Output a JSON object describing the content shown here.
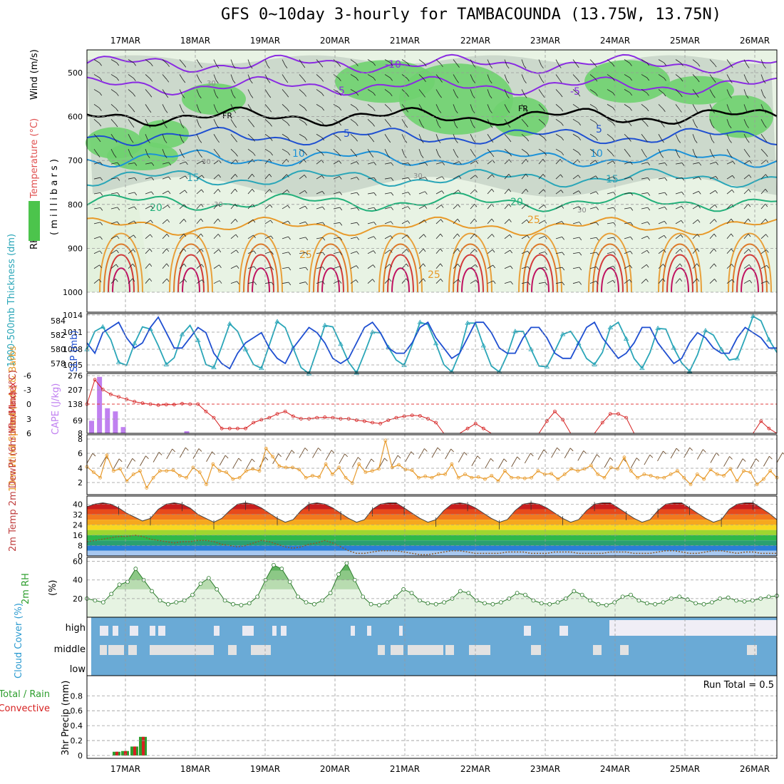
{
  "title": "GFS 0~10day 3-hourly for TAMBACOUNDA (13.75W, 13.75N)",
  "colors": {
    "purple": "#8a2be2",
    "blue": "#1f4fd1",
    "cyan": "#2aa6b8",
    "orange": "#e89a2a",
    "red": "#d62020",
    "green": "#2e9e2e",
    "cloud": "#6aaad6",
    "cape": "#c080f0"
  },
  "chart_data": [
    {
      "type": "heatmap",
      "panel": "upper-air",
      "ylabels": {
        "rh": "RH (%)",
        "temperature": "Temperature (°C)",
        "wind": "Wind (m/s)",
        "axis": "( m i l l i b a r s )"
      },
      "legend_box": "RH (%)",
      "y_ticks": [
        "500",
        "600",
        "700",
        "800",
        "900",
        "1000"
      ],
      "x_ticks": [
        "17MAR",
        "18MAR",
        "19MAR",
        "20MAR",
        "21MAR",
        "22MAR",
        "23MAR",
        "24MAR",
        "25MAR",
        "26MAR"
      ],
      "isotherm_labels": [
        "-10",
        "-5",
        "FR",
        "5",
        "10",
        "15",
        "20",
        "25",
        "-5",
        "FR",
        "5",
        "10",
        "15",
        "20",
        "25",
        "25",
        "30",
        "30",
        "30",
        "30",
        "30"
      ],
      "isotherms": [
        {
          "label": "-10",
          "level": 480
        },
        {
          "label": "-5",
          "level": 530
        },
        {
          "label": "FR",
          "level": 600
        },
        {
          "label": "5",
          "level": 645
        },
        {
          "label": "10",
          "level": 695
        },
        {
          "label": "15",
          "level": 740
        },
        {
          "label": "20",
          "level": 795
        },
        {
          "label": "25",
          "level": 850
        }
      ]
    },
    {
      "type": "line",
      "panel": "thickness-slp",
      "ylabel_left": "1000-500mb Thickness (dm)",
      "ylabel_right": "SLP (mb)",
      "y_left_ticks": [
        "584",
        "582",
        "580",
        "578"
      ],
      "y_right_ticks": [
        "1014",
        "1011",
        "1008",
        "1005"
      ],
      "series": [
        {
          "name": "1000-500mb Thickness (dm)",
          "values": [
            580.0,
            582.4,
            583.0,
            581.3,
            578.3,
            577.9,
            580.8,
            583.0,
            582.7,
            580.5,
            578.0,
            578.9,
            582.0,
            583.2,
            581.2,
            578.0,
            577.6,
            580.4,
            583.4,
            582.4,
            580.0,
            578.0,
            577.5,
            580.6,
            583.7,
            582.9,
            580.2,
            577.6,
            576.8,
            579.9,
            583.2,
            583.0,
            580.7,
            578.3,
            576.9,
            579.5,
            582.3,
            582.2,
            580.3,
            578.6,
            577.9,
            580.6,
            583.6,
            583.3,
            580.8,
            578.0,
            577.0,
            579.5,
            583.5,
            583.5,
            580.5,
            577.8,
            577.0,
            579.3,
            582.4,
            582.4,
            580.0,
            577.8,
            577.7,
            579.8,
            582.0,
            582.4,
            580.8,
            578.8,
            578.0,
            579.6,
            582.9,
            583.6,
            581.4,
            578.8,
            577.5,
            579.6,
            582.8,
            582.7,
            580.2,
            578.2,
            577.1,
            579.3,
            582.5,
            581.9,
            580.0,
            578.6,
            578.8,
            581.5,
            584.4,
            583.8,
            581.3,
            579.6
          ]
        },
        {
          "name": "SLP (mb)",
          "values": [
            1009,
            1007,
            1011,
            1012,
            1013,
            1010,
            1008,
            1009,
            1012,
            1014,
            1011,
            1008,
            1008,
            1010,
            1012,
            1011,
            1007,
            1005,
            1004,
            1007,
            1009,
            1010,
            1011,
            1008,
            1006,
            1005,
            1008,
            1010,
            1012,
            1011,
            1009,
            1006,
            1005,
            1006,
            1009,
            1012,
            1013,
            1011,
            1008,
            1007,
            1007,
            1009,
            1012,
            1013,
            1010,
            1008,
            1006,
            1007,
            1010,
            1013,
            1013,
            1011,
            1008,
            1007,
            1007,
            1010,
            1012,
            1012,
            1010,
            1007,
            1006,
            1006,
            1009,
            1012,
            1013,
            1010,
            1008,
            1006,
            1007,
            1009,
            1012,
            1012,
            1009,
            1007,
            1005,
            1006,
            1009,
            1011,
            1010,
            1008,
            1007,
            1007,
            1010,
            1012,
            1011,
            1010,
            1008,
            1008
          ]
        }
      ]
    },
    {
      "type": "bar",
      "panel": "lifted-index-cape",
      "ylabel_left": "Lifted Index",
      "ylabel_right": "CAPE (J/kg)",
      "y_left_ticks": [
        "-6",
        "-3",
        "0",
        "3",
        "6"
      ],
      "y_right_ticks": [
        "276",
        "207",
        "138",
        "69",
        "8"
      ],
      "series": [
        {
          "name": "Lifted Index",
          "values": [
            0,
            -5,
            -3,
            -2,
            -1.5,
            -1,
            -0.5,
            -0.2,
            0,
            0.2,
            0.1,
            0.1,
            -0.1,
            0,
            0,
            1.5,
            2.8,
            5,
            5,
            5,
            5,
            3.8,
            3.2,
            2.8,
            2,
            1.5,
            2.5,
            3,
            3,
            2.8,
            2.7,
            2.8,
            3,
            3,
            3.3,
            3.5,
            3.8,
            4,
            3.3,
            2.8,
            2.5,
            2.3,
            2.4,
            3,
            3.8,
            6,
            6,
            6,
            5,
            4,
            5,
            6,
            6,
            6,
            6,
            6,
            6,
            6,
            3.5,
            1.5,
            3.2,
            6,
            6,
            6,
            6,
            3.8,
            2,
            2,
            2.8,
            6,
            6,
            6,
            6,
            6,
            6,
            6,
            6,
            6,
            6,
            6,
            6,
            6,
            6,
            6,
            6,
            3.5,
            5,
            6
          ]
        },
        {
          "name": "CAPE (J/kg)",
          "values": [
            60,
            270,
            120,
            105,
            30,
            0,
            0,
            0,
            0,
            0,
            0,
            0,
            10,
            0
          ]
        }
      ]
    },
    {
      "type": "line",
      "panel": "wind-10m",
      "ylabel": "10m Wind Speed (m/s) & Barbs",
      "y_ticks": [
        "8",
        "6",
        "4",
        "2"
      ],
      "series": [
        {
          "name": "10m Wind Speed",
          "values": [
            4.1,
            3.3,
            2.5,
            5.8,
            3.5,
            3.8,
            2.0,
            3.0,
            3.5,
            1.0,
            2.5,
            3.5,
            3.5,
            3.6,
            2.8,
            2.5,
            4.0,
            3.3,
            1.5,
            4.5,
            3.5,
            3.3,
            2.3,
            2.5,
            3.5,
            3.8,
            3.5,
            6.8,
            5.6,
            4.2,
            4.0,
            4.0,
            3.7,
            2.5,
            2.8,
            2.6,
            4.5,
            3.0,
            4.0,
            2.5,
            1.7,
            4.5,
            3.3,
            3.5,
            3.8,
            8.0,
            4.0,
            4.4,
            3.7,
            3.6,
            2.5,
            2.7,
            2.5,
            3.0,
            3.0,
            4.5,
            2.5,
            3.0,
            2.5,
            2.6,
            2.3,
            2.8,
            2.0,
            3.5,
            2.5,
            2.5,
            2.4,
            2.5,
            3.5,
            3.0,
            3.1,
            2.3,
            3.0,
            3.8,
            3.5,
            3.8,
            4.3,
            3.0,
            2.5,
            4.0,
            3.8,
            5.5,
            3.5,
            2.5,
            3.0,
            2.8,
            2.5,
            2.5,
            3.0,
            3.5,
            2.5,
            1.5,
            3.0,
            2.3,
            3.7,
            3.0,
            2.8,
            3.8,
            2.0,
            3.5,
            3.3,
            1.5,
            2.3,
            3.5,
            2.5
          ]
        }
      ]
    },
    {
      "type": "area",
      "panel": "temperature-dewpoint",
      "ylabel": "2m Temp 2m DewPt (6hr Min/Max) (°C)",
      "y_ticks": [
        "40",
        "32",
        "24",
        "16",
        "8",
        "0"
      ],
      "series": [
        {
          "name": "2m Temp",
          "values": [
            38,
            40,
            41,
            40,
            37,
            33,
            30,
            27,
            29,
            36,
            40,
            41,
            40,
            37,
            32,
            29,
            26,
            29,
            35,
            40,
            41,
            40,
            37,
            33,
            29,
            26,
            28,
            35,
            40,
            41,
            40,
            37,
            33,
            29,
            26,
            28,
            36,
            40,
            41,
            41,
            37,
            33,
            29,
            26,
            28,
            35,
            40,
            41,
            40,
            37,
            33,
            29,
            26,
            28,
            35,
            40,
            41,
            40,
            37,
            33,
            29,
            26,
            28,
            35,
            40,
            41,
            41,
            37,
            33,
            29,
            26,
            28,
            35,
            40,
            41,
            41,
            37,
            33,
            29,
            26,
            28,
            36,
            40,
            41,
            41,
            37,
            33,
            28
          ]
        },
        {
          "name": "2m DewPt",
          "values": [
            11,
            12,
            13,
            14,
            15,
            15,
            16,
            15,
            13,
            12,
            11,
            10,
            11,
            11,
            12,
            12,
            11,
            9,
            8,
            7,
            8,
            10,
            12,
            11,
            9,
            7,
            6,
            7,
            9,
            10,
            12,
            10,
            7,
            4,
            2,
            2,
            3,
            4,
            4,
            4,
            3,
            2,
            1,
            1,
            2,
            3,
            4,
            4,
            3,
            2,
            2,
            2,
            2,
            3,
            3,
            3,
            2,
            2,
            2,
            3,
            3,
            3,
            2,
            2,
            2,
            2,
            3,
            3,
            3,
            2,
            2,
            2,
            3,
            4,
            4,
            3,
            2,
            2,
            3,
            4,
            4,
            3,
            2,
            3,
            3,
            2,
            2,
            2
          ]
        }
      ]
    },
    {
      "type": "area",
      "panel": "relative-humidity",
      "ylabel": "2m RH (%)",
      "y_ticks": [
        "60",
        "40",
        "20"
      ],
      "series": [
        {
          "name": "2m RH",
          "values": [
            20,
            18,
            16,
            25,
            35,
            38,
            52,
            40,
            28,
            18,
            14,
            16,
            18,
            24,
            36,
            42,
            30,
            18,
            14,
            13,
            15,
            22,
            40,
            56,
            52,
            38,
            22,
            16,
            14,
            18,
            26,
            46,
            58,
            40,
            22,
            14,
            13,
            16,
            22,
            30,
            26,
            18,
            15,
            14,
            16,
            20,
            28,
            26,
            18,
            15,
            14,
            16,
            20,
            26,
            24,
            18,
            15,
            14,
            16,
            20,
            28,
            24,
            18,
            14,
            13,
            16,
            22,
            24,
            18,
            15,
            14,
            16,
            20,
            22,
            19,
            15,
            14,
            16,
            20,
            21,
            18,
            17,
            18,
            20,
            22,
            23
          ]
        }
      ]
    },
    {
      "type": "heatmap",
      "panel": "cloud-cover",
      "ylabel": "Cloud Cover (%)",
      "y_ticks": [
        "high",
        "middle",
        "low"
      ]
    },
    {
      "type": "bar",
      "panel": "precipitation",
      "ylabel_left": "3hr Precip (mm)",
      "ylabel_green": "Total / Rain",
      "ylabel_red": "Convective",
      "annotation": "Run Total = 0.5",
      "y_ticks": [
        "0.8",
        "0.6",
        "0.4",
        "0.2",
        "0"
      ],
      "x_ticks": [
        "17MAR",
        "18MAR",
        "19MAR",
        "20MAR",
        "21MAR",
        "22MAR",
        "23MAR",
        "24MAR",
        "25MAR",
        "26MAR"
      ],
      "series": [
        {
          "name": "Total / Rain",
          "values": [
            0.05,
            0.06,
            0.12,
            0.25
          ]
        },
        {
          "name": "Convective",
          "values": [
            0.05,
            0.06,
            0.12,
            0.25
          ]
        }
      ]
    }
  ]
}
